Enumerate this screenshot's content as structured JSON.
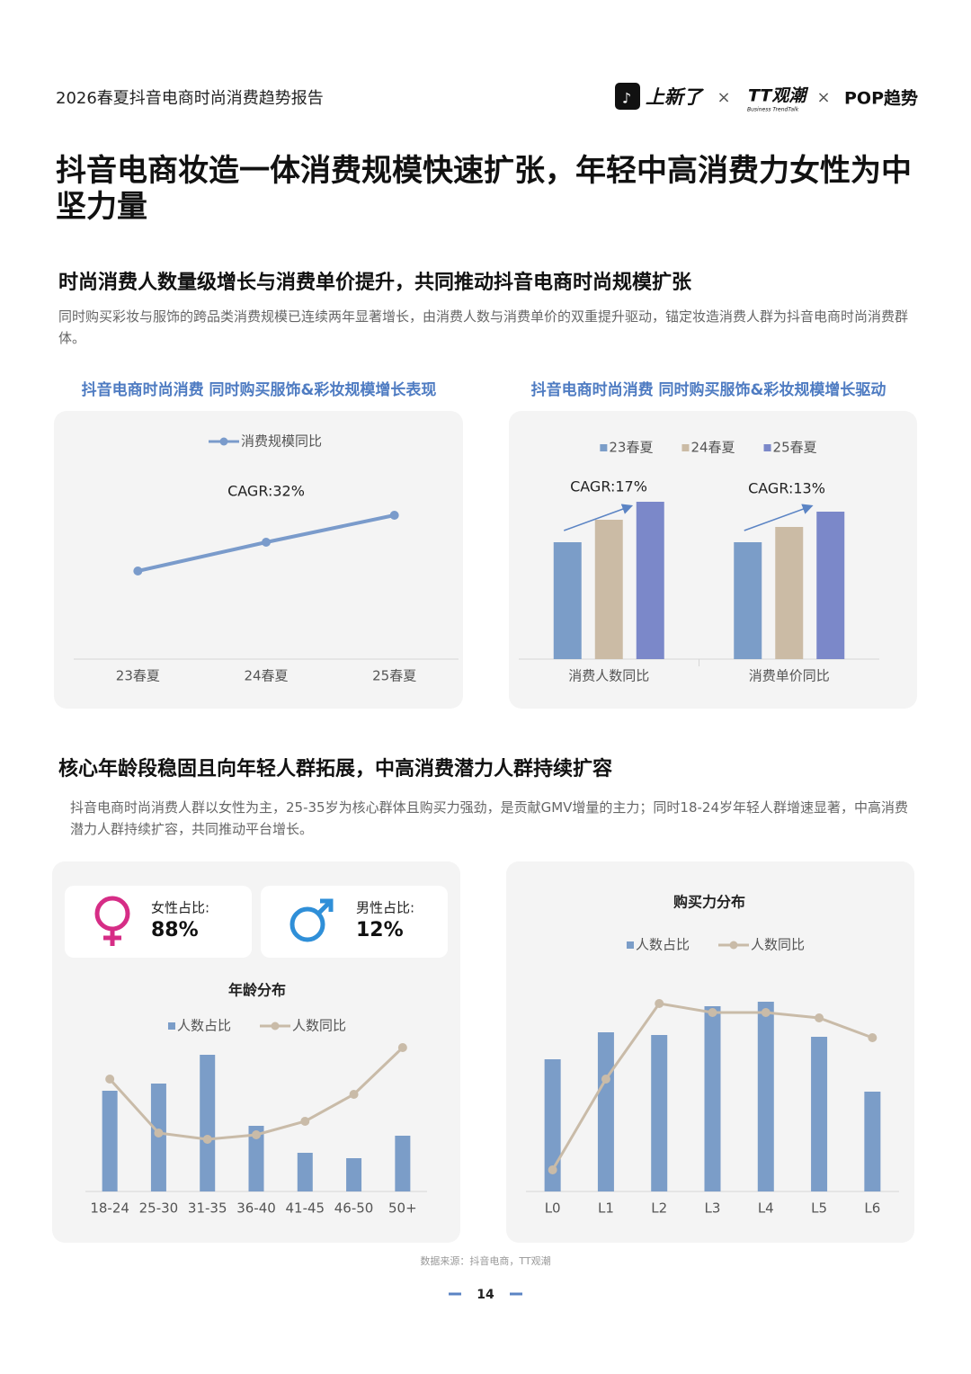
{
  "header": {
    "report": "2026春夏抖音电商时尚消费趋势报告",
    "brand1": "上新了",
    "brand2": "TT观潮",
    "brand2_sub": "Business TrendTalk",
    "separator": "×",
    "brand3": "POP趋势"
  },
  "title": "抖音电商妆造一体消费规模快速扩张，年轻中高消费力女性为中坚力量",
  "sections": [
    {
      "heading": "时尚消费人数量级增长与消费单价提升，共同推动抖音电商时尚规模扩张",
      "text": "同时购买彩妆与服饰的跨品类消费规模已连续两年显著增长，由消费人数与消费单价的双重提升驱动，锚定妆造消费人群为抖音电商时尚消费群体。"
    },
    {
      "heading": "核心年龄段稳固且向年轻人群拓展，中高消费潜力人群持续扩容",
      "text": "抖音电商时尚消费人群以女性为主，25-35岁为核心群体且购买力强劲，是贡献GMV增量的主力；同时18-24岁年轻人群增速显著，中高消费潜力人群持续扩容，共同推动平台增长。"
    }
  ],
  "gender": [
    {
      "label": "女性占比:",
      "value": "88%"
    },
    {
      "label": "男性占比:",
      "value": "12%"
    }
  ],
  "chart_data": [
    {
      "type": "line",
      "title": "抖音电商时尚消费 同时购买服饰&彩妆规模增长表现",
      "categories": [
        "23春夏",
        "24春夏",
        "25春夏"
      ],
      "series": [
        {
          "name": "消费规模同比",
          "color": "#7a9bcb",
          "values": [
            98,
            130,
            160
          ]
        }
      ],
      "annotations": [
        "CAGR:32%"
      ],
      "ylim": [
        0,
        200
      ]
    },
    {
      "type": "bar",
      "title": "抖音电商时尚消费 同时购买服饰&彩妆规模增长驱动",
      "categories": [
        "消费人数同比",
        "消费单价同比"
      ],
      "series": [
        {
          "name": "23春夏",
          "color": "#7b9dc8",
          "values": [
            130,
            130
          ]
        },
        {
          "name": "24春夏",
          "color": "#cbbba5",
          "values": [
            155,
            147
          ]
        },
        {
          "name": "25春夏",
          "color": "#7b88c9",
          "values": [
            175,
            164
          ]
        }
      ],
      "annotations": [
        "CAGR:17%",
        "CAGR:13%"
      ],
      "ylim": [
        0,
        200
      ]
    },
    {
      "type": "bar",
      "title": "年龄分布",
      "categories": [
        "18-24",
        "25-30",
        "31-35",
        "36-40",
        "41-45",
        "46-50",
        "50+"
      ],
      "series": [
        {
          "name": "人数占比",
          "color": "#7b9dc8",
          "values": [
            112,
            120,
            152,
            73,
            43,
            37,
            62
          ]
        },
        {
          "name": "人数同比",
          "color": "#c9bba8",
          "type": "line",
          "values": [
            125,
            65,
            58,
            63,
            78,
            108,
            160
          ]
        }
      ],
      "ylim": [
        0,
        200
      ]
    },
    {
      "type": "bar",
      "title": "购买力分布",
      "categories": [
        "L0",
        "L1",
        "L2",
        "L3",
        "L4",
        "L5",
        "L6"
      ],
      "series": [
        {
          "name": "人数占比",
          "color": "#7b9dc8",
          "values": [
            147,
            177,
            174,
            206,
            211,
            172,
            111
          ]
        },
        {
          "name": "人数同比",
          "color": "#c9bba8",
          "type": "line",
          "values": [
            24,
            125,
            209,
            199,
            199,
            193,
            171
          ]
        }
      ],
      "ylim": [
        0,
        240
      ]
    }
  ],
  "footer": {
    "source": "数据来源：抖音电商，TT观潮",
    "page": "14"
  }
}
